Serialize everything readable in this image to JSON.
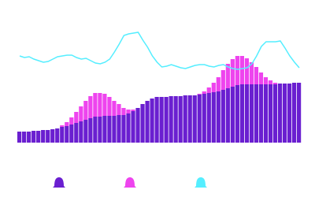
{
  "chart_data": {
    "type": "bar-line",
    "categories": [
      null,
      null,
      null,
      null,
      null,
      null,
      null,
      null,
      null,
      null,
      null,
      null,
      null,
      null,
      null,
      null,
      null,
      null,
      null,
      null,
      null,
      null,
      null,
      null,
      null,
      null,
      null,
      null,
      null,
      null,
      null,
      null,
      null,
      null,
      null,
      null,
      null,
      null,
      null,
      null,
      null,
      null,
      null,
      null,
      null,
      null,
      null,
      null,
      null,
      null,
      null,
      null,
      null,
      null,
      null,
      null,
      null,
      null,
      null,
      null
    ],
    "ylim": [
      0,
      160
    ],
    "series": [
      {
        "type": "bar",
        "color": "#6a1fd0",
        "values": [
          14,
          14,
          14,
          15,
          15,
          16,
          16,
          17,
          18,
          20,
          21,
          23,
          25,
          27,
          29,
          31,
          33,
          33,
          34,
          34,
          34,
          35,
          35,
          37,
          40,
          44,
          49,
          53,
          56,
          58,
          58,
          58,
          59,
          59,
          59,
          60,
          60,
          60,
          61,
          62,
          63,
          64,
          65,
          67,
          69,
          71,
          73,
          74,
          74,
          74,
          74,
          74,
          74,
          74,
          74,
          75,
          75,
          75,
          76,
          76
        ]
      },
      {
        "type": "bar",
        "color": "#ee44ee",
        "values": [
          0,
          0,
          0,
          0,
          0,
          0,
          0,
          0,
          0,
          2,
          5,
          9,
          14,
          19,
          24,
          28,
          30,
          30,
          28,
          24,
          19,
          14,
          9,
          5,
          2,
          0,
          0,
          0,
          0,
          0,
          0,
          0,
          0,
          0,
          0,
          0,
          0,
          0,
          1,
          3,
          7,
          12,
          18,
          25,
          31,
          35,
          37,
          36,
          33,
          28,
          22,
          15,
          9,
          5,
          2,
          0,
          0,
          0,
          0,
          0
        ]
      },
      {
        "type": "line",
        "color": "#55eeff",
        "values": [
          110,
          108,
          109,
          106,
          104,
          102,
          103,
          106,
          109,
          110,
          111,
          111,
          108,
          106,
          107,
          104,
          101,
          100,
          102,
          106,
          115,
          125,
          136,
          138,
          139,
          140,
          130,
          121,
          110,
          102,
          96,
          97,
          99,
          97,
          95,
          94,
          96,
          98,
          99,
          99,
          97,
          96,
          98,
          99,
          96,
          94,
          93,
          94,
          95,
          100,
          110,
          122,
          128,
          128,
          128,
          129,
          120,
          110,
          102,
          95
        ]
      }
    ]
  }
}
